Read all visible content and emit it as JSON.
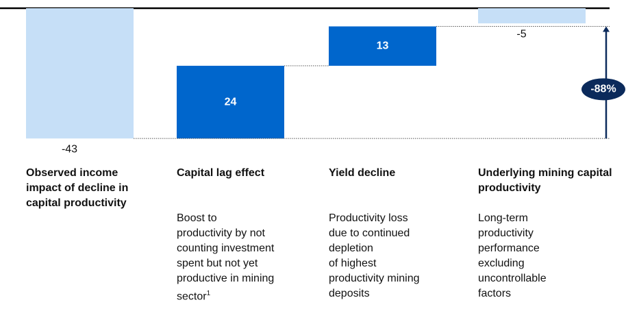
{
  "chart_data": {
    "type": "waterfall",
    "categories": [
      "Observed income impact of decline in capital productivity",
      "Capital lag effect",
      "Yield decline",
      "Underlying mining capital productivity"
    ],
    "values": [
      -43,
      24,
      13,
      -5
    ],
    "measures": [
      "absolute",
      "relative",
      "relative",
      "absolute"
    ],
    "colors": {
      "absolute": "#c6dff7",
      "relative": "#0066cc"
    },
    "descriptions": [
      [],
      [
        "Boost to",
        "productivity by not",
        "counting investment",
        "spent but not yet",
        "productive in mining",
        "sector"
      ],
      [
        "Productivity loss",
        "due to continued",
        "depletion",
        "of highest",
        "productivity mining",
        "deposits"
      ],
      [
        "Long-term",
        "productivity",
        "performance",
        "excluding",
        "uncontrollable",
        "factors"
      ]
    ],
    "footnote_marker": "1",
    "annotation": "-88%",
    "ylim": [
      -45,
      0
    ]
  }
}
